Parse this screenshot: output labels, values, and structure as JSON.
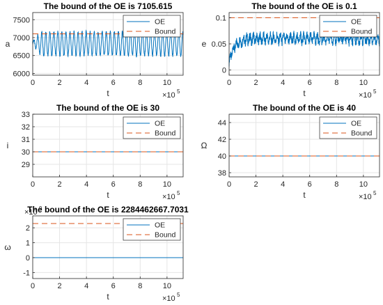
{
  "colors": {
    "oe": "#0072bd",
    "bound": "#d95319",
    "grid": "#e5e5e5",
    "axis": "#262626"
  },
  "chart_data": [
    {
      "type": "line",
      "title": "The bound of the OE is 7105.615",
      "xlabel": "t",
      "ylabel": "a",
      "xexp": "×10",
      "xexp_power": "5",
      "xlim": [
        0,
        11.2
      ],
      "ylim": [
        5950,
        7700
      ],
      "xticks": [
        0,
        2,
        4,
        6,
        8,
        10
      ],
      "yticks": [
        6000,
        6500,
        7000,
        7500
      ],
      "legend": {
        "position": "top-right",
        "entries": [
          "OE",
          "Bound"
        ]
      },
      "grid": true,
      "bound": 7105.615,
      "oe_signal": {
        "kind": "oscillation",
        "center": 6830,
        "amplitude": 330,
        "period": 0.3,
        "start_value": 6850,
        "ramp_x": 0.6
      },
      "series": [
        {
          "name": "OE",
          "values_note": "oscillating between about 6450 and 7250"
        },
        {
          "name": "Bound",
          "value": 7105.615
        }
      ]
    },
    {
      "type": "line",
      "title": "The bound of the OE is 0.1",
      "xlabel": "t",
      "ylabel": "e",
      "xexp": "×10",
      "xexp_power": "5",
      "xlim": [
        0,
        11.2
      ],
      "ylim": [
        -0.01,
        0.11
      ],
      "xticks": [
        0,
        2,
        4,
        6,
        8,
        10
      ],
      "yticks": [
        0,
        0.05,
        0.1
      ],
      "legend": {
        "position": "top-right",
        "entries": [
          "OE",
          "Bound"
        ]
      },
      "grid": true,
      "bound": 0.1,
      "oe_signal": {
        "kind": "noisy-rise",
        "center": 0.06,
        "amplitude": 0.012,
        "period": 0.25,
        "start_value": 0.015,
        "ramp_x": 1.2
      },
      "series": [
        {
          "name": "OE",
          "values_note": "rises from about 0.01 to ~0.06 and fluctuates"
        },
        {
          "name": "Bound",
          "value": 0.1
        }
      ]
    },
    {
      "type": "line",
      "title": "The bound of the OE is 30",
      "xlabel": "t",
      "ylabel": "i",
      "xexp": "×10",
      "xexp_power": "5",
      "xlim": [
        0,
        11.2
      ],
      "ylim": [
        28,
        33
      ],
      "xticks": [
        0,
        2,
        4,
        6,
        8,
        10
      ],
      "yticks": [
        29,
        30,
        31,
        32,
        33
      ],
      "legend": {
        "position": "top-right",
        "entries": [
          "OE",
          "Bound"
        ]
      },
      "grid": true,
      "bound": 30,
      "oe_signal": {
        "kind": "constant",
        "center": 30
      },
      "series": [
        {
          "name": "OE",
          "value": 30
        },
        {
          "name": "Bound",
          "value": 30
        }
      ]
    },
    {
      "type": "line",
      "title": "The bound of the OE is 40",
      "xlabel": "t",
      "ylabel": "Ω",
      "xexp": "×10",
      "xexp_power": "5",
      "xlim": [
        0,
        11.2
      ],
      "ylim": [
        37.5,
        45
      ],
      "xticks": [
        0,
        2,
        4,
        6,
        8,
        10
      ],
      "yticks": [
        38,
        40,
        42,
        44
      ],
      "legend": {
        "position": "top-right",
        "entries": [
          "OE",
          "Bound"
        ]
      },
      "grid": true,
      "bound": 40,
      "oe_signal": {
        "kind": "constant",
        "center": 40
      },
      "series": [
        {
          "name": "OE",
          "value": 40
        },
        {
          "name": "Bound",
          "value": 40
        }
      ]
    },
    {
      "type": "line",
      "title": "The bound of the OE is 2284462667.7031",
      "xlabel": "t",
      "ylabel": "ω",
      "xexp": "×10",
      "xexp_power": "5",
      "yexp": "×10",
      "yexp_power": "9",
      "xlim": [
        0,
        11.2
      ],
      "ylim": [
        -1.4,
        2.8
      ],
      "xticks": [
        0,
        2,
        4,
        6,
        8,
        10
      ],
      "yticks": [
        -1,
        0,
        1,
        2
      ],
      "legend": {
        "position": "top-right",
        "entries": [
          "OE",
          "Bound"
        ]
      },
      "grid": true,
      "bound": 2.284,
      "oe_signal": {
        "kind": "constant",
        "center": 0
      },
      "series": [
        {
          "name": "OE",
          "value": 0
        },
        {
          "name": "Bound",
          "value": 2.284
        }
      ]
    }
  ]
}
